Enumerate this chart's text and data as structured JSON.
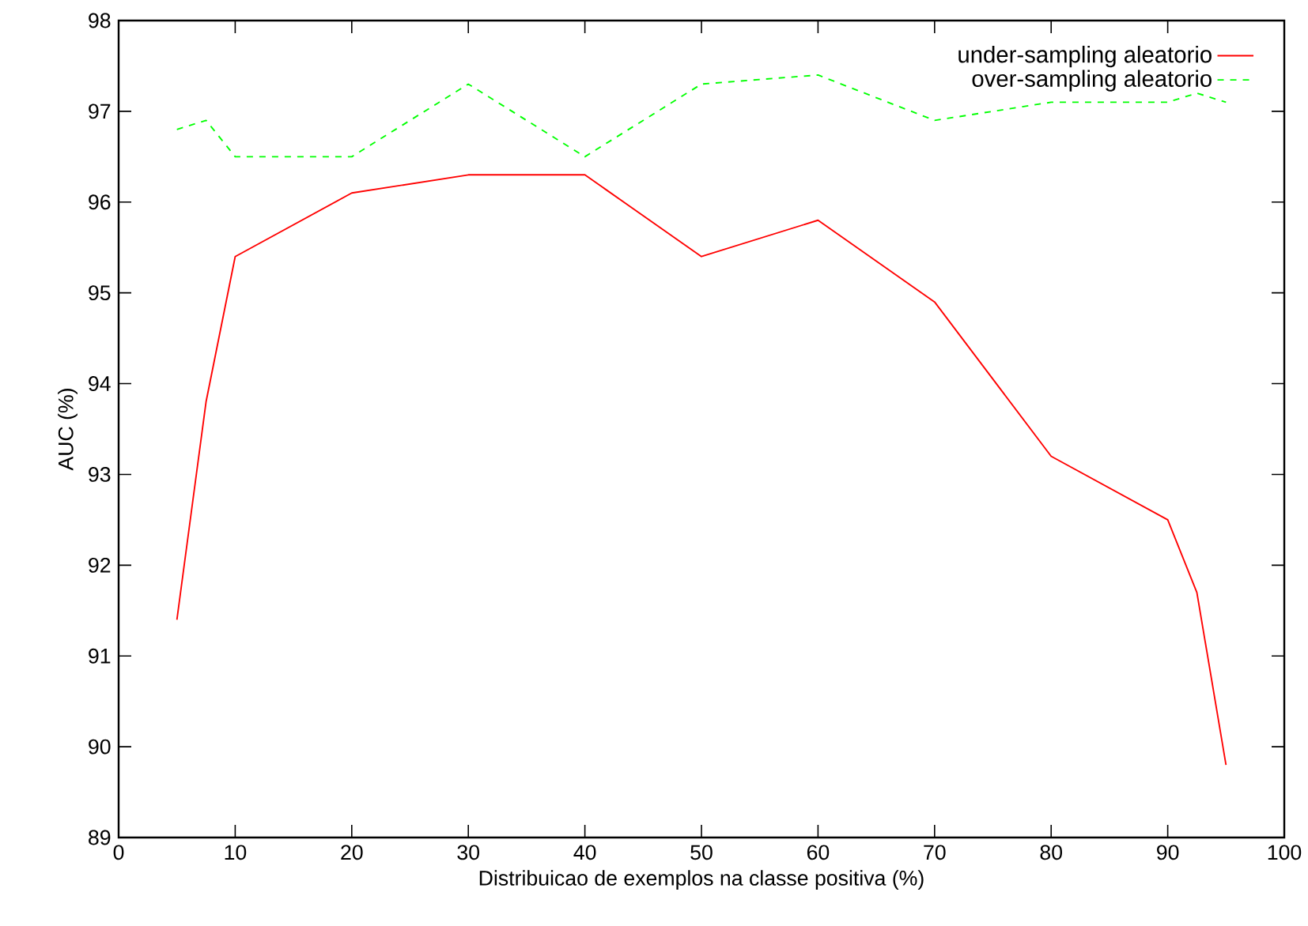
{
  "chart_data": {
    "type": "line",
    "xlabel": "Distribuicao de exemplos na classe positiva (%)",
    "ylabel": "AUC (%)",
    "x": [
      5,
      7.5,
      10,
      20,
      30,
      40,
      50,
      60,
      70,
      80,
      90,
      92.5,
      95
    ],
    "series": [
      {
        "name": "under-sampling aleatorio",
        "color": "#ff0000",
        "line_style": "solid",
        "values": [
          91.4,
          93.8,
          95.4,
          96.1,
          96.3,
          96.3,
          95.4,
          95.8,
          94.9,
          93.2,
          92.5,
          91.7,
          89.8
        ]
      },
      {
        "name": "over-sampling aleatorio",
        "color": "#00ff00",
        "line_style": "dashed",
        "values": [
          96.8,
          96.9,
          96.5,
          96.5,
          97.3,
          96.5,
          97.3,
          97.4,
          96.9,
          97.1,
          97.1,
          97.2,
          97.1
        ]
      }
    ],
    "xlim": [
      0,
      100
    ],
    "ylim": [
      89,
      98
    ],
    "xticks": [
      0,
      10,
      20,
      30,
      40,
      50,
      60,
      70,
      80,
      90,
      100
    ],
    "yticks": [
      89,
      90,
      91,
      92,
      93,
      94,
      95,
      96,
      97,
      98
    ],
    "grid": false,
    "legend": "top right",
    "marker": "none"
  }
}
